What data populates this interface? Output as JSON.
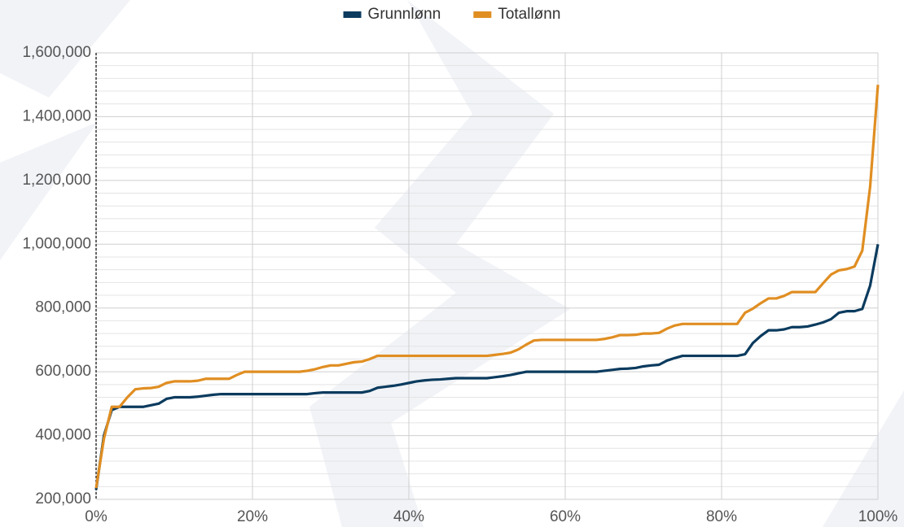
{
  "chart_data": {
    "type": "line",
    "x": [
      0,
      1,
      2,
      3,
      4,
      5,
      6,
      7,
      8,
      9,
      10,
      11,
      12,
      13,
      14,
      15,
      16,
      17,
      18,
      19,
      20,
      21,
      22,
      23,
      24,
      25,
      26,
      27,
      28,
      29,
      30,
      31,
      32,
      33,
      34,
      35,
      36,
      37,
      38,
      39,
      40,
      41,
      42,
      43,
      44,
      45,
      46,
      47,
      48,
      49,
      50,
      51,
      52,
      53,
      54,
      55,
      56,
      57,
      58,
      59,
      60,
      61,
      62,
      63,
      64,
      65,
      66,
      67,
      68,
      69,
      70,
      71,
      72,
      73,
      74,
      75,
      76,
      77,
      78,
      79,
      80,
      81,
      82,
      83,
      84,
      85,
      86,
      87,
      88,
      89,
      90,
      91,
      92,
      93,
      94,
      95,
      96,
      97,
      98,
      99,
      100
    ],
    "series": [
      {
        "name": "Grunnlønn",
        "color": "#0b3b5e",
        "values": [
          230000,
          400000,
          480000,
          490000,
          490000,
          490000,
          490000,
          495000,
          500000,
          515000,
          520000,
          520000,
          520000,
          522000,
          525000,
          528000,
          530000,
          530000,
          530000,
          530000,
          530000,
          530000,
          530000,
          530000,
          530000,
          530000,
          530000,
          530000,
          533000,
          535000,
          535000,
          535000,
          535000,
          535000,
          535000,
          540000,
          550000,
          553000,
          556000,
          560000,
          565000,
          570000,
          573000,
          575000,
          576000,
          578000,
          580000,
          580000,
          580000,
          580000,
          580000,
          583000,
          586000,
          590000,
          595000,
          600000,
          600000,
          600000,
          600000,
          600000,
          600000,
          600000,
          600000,
          600000,
          600000,
          603000,
          606000,
          609000,
          610000,
          612000,
          617000,
          620000,
          622000,
          635000,
          643000,
          650000,
          650000,
          650000,
          650000,
          650000,
          650000,
          650000,
          650000,
          655000,
          690000,
          712000,
          730000,
          730000,
          733000,
          740000,
          740000,
          742000,
          748000,
          755000,
          765000,
          785000,
          790000,
          790000,
          797000,
          870000,
          1000000
        ]
      },
      {
        "name": "Totallønn",
        "color": "#e08e22",
        "values": [
          235000,
          390000,
          490000,
          490000,
          520000,
          545000,
          548000,
          549000,
          553000,
          565000,
          570000,
          570000,
          570000,
          572000,
          578000,
          578000,
          578000,
          578000,
          590000,
          600000,
          600000,
          600000,
          600000,
          600000,
          600000,
          600000,
          600000,
          603000,
          608000,
          615000,
          620000,
          620000,
          625000,
          630000,
          632000,
          640000,
          650000,
          650000,
          650000,
          650000,
          650000,
          650000,
          650000,
          650000,
          650000,
          650000,
          650000,
          650000,
          650000,
          650000,
          650000,
          653000,
          656000,
          660000,
          670000,
          685000,
          698000,
          700000,
          700000,
          700000,
          700000,
          700000,
          700000,
          700000,
          700000,
          703000,
          708000,
          715000,
          715000,
          716000,
          720000,
          720000,
          722000,
          735000,
          745000,
          750000,
          750000,
          750000,
          750000,
          750000,
          750000,
          750000,
          750000,
          785000,
          798000,
          815000,
          830000,
          830000,
          838000,
          850000,
          850000,
          850000,
          850000,
          878000,
          905000,
          918000,
          922000,
          930000,
          980000,
          1180000,
          1500000
        ]
      }
    ],
    "xlim": [
      0,
      100
    ],
    "xticks": [
      {
        "value": 0,
        "label": "0%"
      },
      {
        "value": 20,
        "label": "20%"
      },
      {
        "value": 40,
        "label": "40%"
      },
      {
        "value": 60,
        "label": "60%"
      },
      {
        "value": 80,
        "label": "80%"
      },
      {
        "value": 100,
        "label": "100%"
      }
    ],
    "ylim": [
      200000,
      1600000
    ],
    "yticks": [
      {
        "value": 200000,
        "label": "200,000"
      },
      {
        "value": 400000,
        "label": "400,000"
      },
      {
        "value": 600000,
        "label": "600,000"
      },
      {
        "value": 800000,
        "label": "800,000"
      },
      {
        "value": 1000000,
        "label": "1,000,000"
      },
      {
        "value": 1200000,
        "label": "1,200,000"
      },
      {
        "value": 1400000,
        "label": "1,400,000"
      },
      {
        "value": 1600000,
        "label": "1,600,000"
      }
    ],
    "grid": true,
    "legend": "top"
  }
}
